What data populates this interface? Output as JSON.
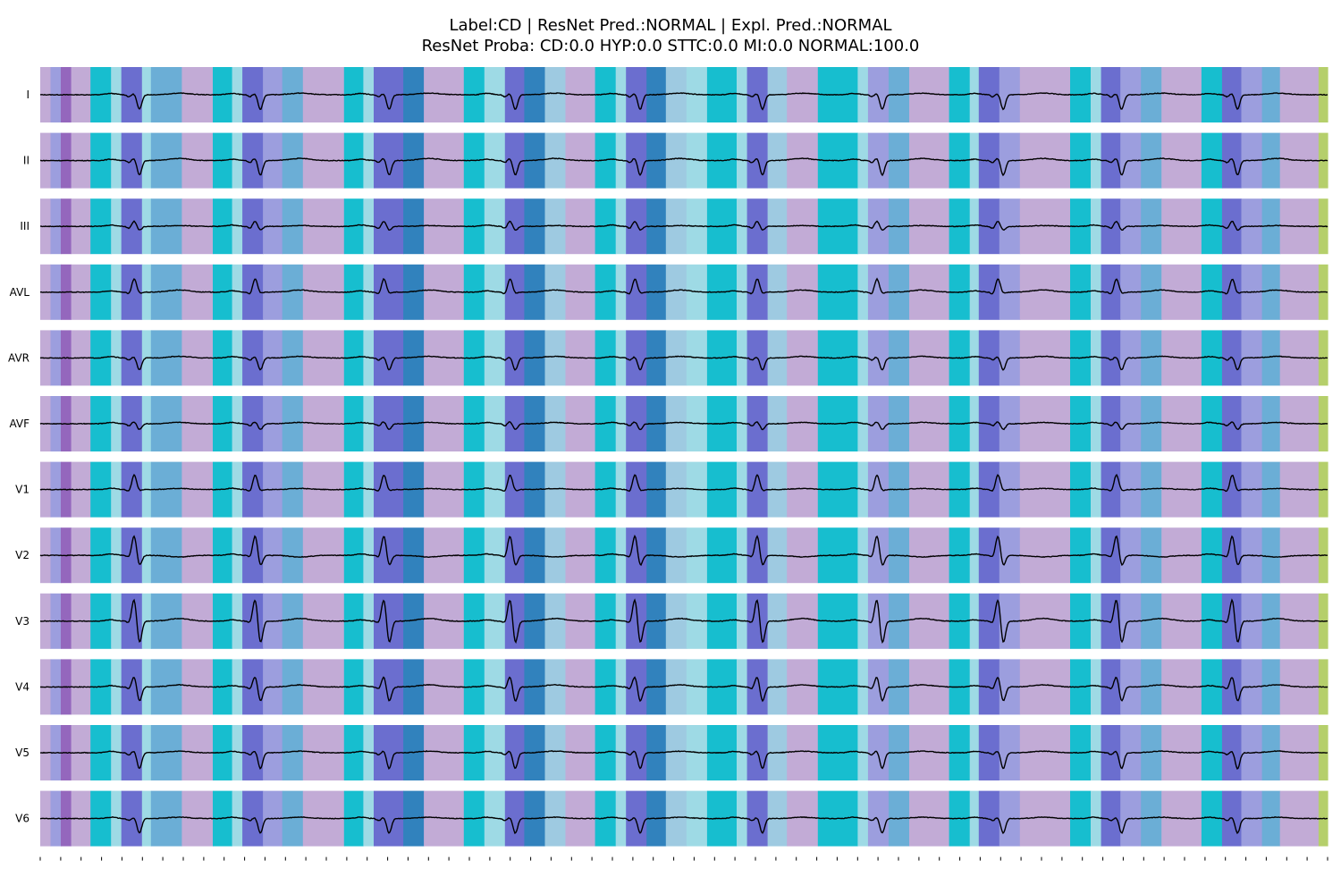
{
  "figure": {
    "title_line1": "Label:CD | ResNet Pred.:NORMAL | Expl. Pred.:NORMAL",
    "title_line2": "ResNet Proba: CD:0.0 HYP:0.0 STTC:0.0 MI:0.0 NORMAL:100.0"
  },
  "chart_data": {
    "type": "line",
    "title": "Label:CD | ResNet Pred.:NORMAL | Expl. Pred.:NORMAL",
    "subtitle": "ResNet Proba: CD:0.0 HYP:0.0 STTC:0.0 MI:0.0 NORMAL:100.0",
    "xlabel": "",
    "ylabel": "",
    "grid": false,
    "legend": "none",
    "x_tick_count": 64,
    "leads": [
      "I",
      "II",
      "III",
      "AVL",
      "AVR",
      "AVF",
      "V1",
      "V2",
      "V3",
      "V4",
      "V5",
      "V6"
    ],
    "probabilities": {
      "CD": 0.0,
      "HYP": 0.0,
      "STTC": 0.0,
      "MI": 0.0,
      "NORMAL": 100.0
    },
    "segment_palette": [
      "#c2abd6",
      "#17becf",
      "#9edae5",
      "#6b6ecf",
      "#3182bd",
      "#6baed6",
      "#9c9ede",
      "#9ecae1",
      "#9467bd",
      "#b5cf6b"
    ],
    "segments_sample_fraction": [
      [
        0.0,
        0.008,
        0
      ],
      [
        0.008,
        0.016,
        6
      ],
      [
        0.016,
        0.024,
        8
      ],
      [
        0.024,
        0.039,
        0
      ],
      [
        0.039,
        0.055,
        1
      ],
      [
        0.055,
        0.063,
        2
      ],
      [
        0.063,
        0.079,
        3
      ],
      [
        0.079,
        0.086,
        2
      ],
      [
        0.086,
        0.11,
        5
      ],
      [
        0.11,
        0.134,
        0
      ],
      [
        0.134,
        0.149,
        1
      ],
      [
        0.149,
        0.157,
        2
      ],
      [
        0.157,
        0.173,
        3
      ],
      [
        0.173,
        0.188,
        6
      ],
      [
        0.188,
        0.204,
        5
      ],
      [
        0.204,
        0.236,
        0
      ],
      [
        0.236,
        0.251,
        1
      ],
      [
        0.251,
        0.259,
        2
      ],
      [
        0.259,
        0.282,
        3
      ],
      [
        0.282,
        0.298,
        4
      ],
      [
        0.298,
        0.329,
        0
      ],
      [
        0.329,
        0.345,
        1
      ],
      [
        0.345,
        0.361,
        2
      ],
      [
        0.361,
        0.376,
        3
      ],
      [
        0.376,
        0.392,
        4
      ],
      [
        0.392,
        0.408,
        7
      ],
      [
        0.408,
        0.431,
        0
      ],
      [
        0.431,
        0.447,
        1
      ],
      [
        0.447,
        0.455,
        2
      ],
      [
        0.455,
        0.471,
        3
      ],
      [
        0.471,
        0.486,
        4
      ],
      [
        0.486,
        0.502,
        7
      ],
      [
        0.502,
        0.518,
        2
      ],
      [
        0.518,
        0.541,
        1
      ],
      [
        0.541,
        0.549,
        2
      ],
      [
        0.549,
        0.565,
        3
      ],
      [
        0.565,
        0.58,
        7
      ],
      [
        0.58,
        0.604,
        0
      ],
      [
        0.604,
        0.635,
        1
      ],
      [
        0.635,
        0.643,
        2
      ],
      [
        0.643,
        0.659,
        6
      ],
      [
        0.659,
        0.675,
        5
      ],
      [
        0.675,
        0.706,
        0
      ],
      [
        0.706,
        0.722,
        1
      ],
      [
        0.722,
        0.729,
        2
      ],
      [
        0.729,
        0.745,
        3
      ],
      [
        0.745,
        0.761,
        6
      ],
      [
        0.761,
        0.8,
        0
      ],
      [
        0.8,
        0.816,
        1
      ],
      [
        0.816,
        0.824,
        2
      ],
      [
        0.824,
        0.839,
        3
      ],
      [
        0.839,
        0.855,
        6
      ],
      [
        0.855,
        0.871,
        5
      ],
      [
        0.871,
        0.902,
        0
      ],
      [
        0.902,
        0.918,
        1
      ],
      [
        0.918,
        0.933,
        3
      ],
      [
        0.933,
        0.949,
        6
      ],
      [
        0.949,
        0.963,
        5
      ],
      [
        0.963,
        0.993,
        0
      ],
      [
        0.993,
        1.0,
        9
      ]
    ],
    "beats_sample_fraction": [
      0.073,
      0.167,
      0.267,
      0.365,
      0.462,
      0.557,
      0.65,
      0.744,
      0.836,
      0.926
    ],
    "lead_morphology": {
      "I": {
        "r": 0.05,
        "s": -0.55,
        "t": 0.06
      },
      "II": {
        "r": 0.1,
        "s": -0.55,
        "t": 0.08
      },
      "III": {
        "r": 0.2,
        "s": -0.15,
        "t": 0.03
      },
      "AVL": {
        "r": 0.5,
        "s": -0.05,
        "t": 0.08
      },
      "AVR": {
        "r": 0.05,
        "s": -0.45,
        "t": 0.06
      },
      "AVF": {
        "r": 0.08,
        "s": -0.22,
        "t": 0.05
      },
      "V1": {
        "r": 0.55,
        "s": -0.05,
        "t": 0.04
      },
      "V2": {
        "r": 0.75,
        "s": -0.4,
        "t": -0.06
      },
      "V3": {
        "r": 0.85,
        "s": -0.85,
        "t": 0.1
      },
      "V4": {
        "r": 0.4,
        "s": -0.55,
        "t": 0.08
      },
      "V5": {
        "r": 0.08,
        "s": -0.6,
        "t": 0.06
      },
      "V6": {
        "r": 0.05,
        "s": -0.55,
        "t": 0.05
      }
    }
  }
}
